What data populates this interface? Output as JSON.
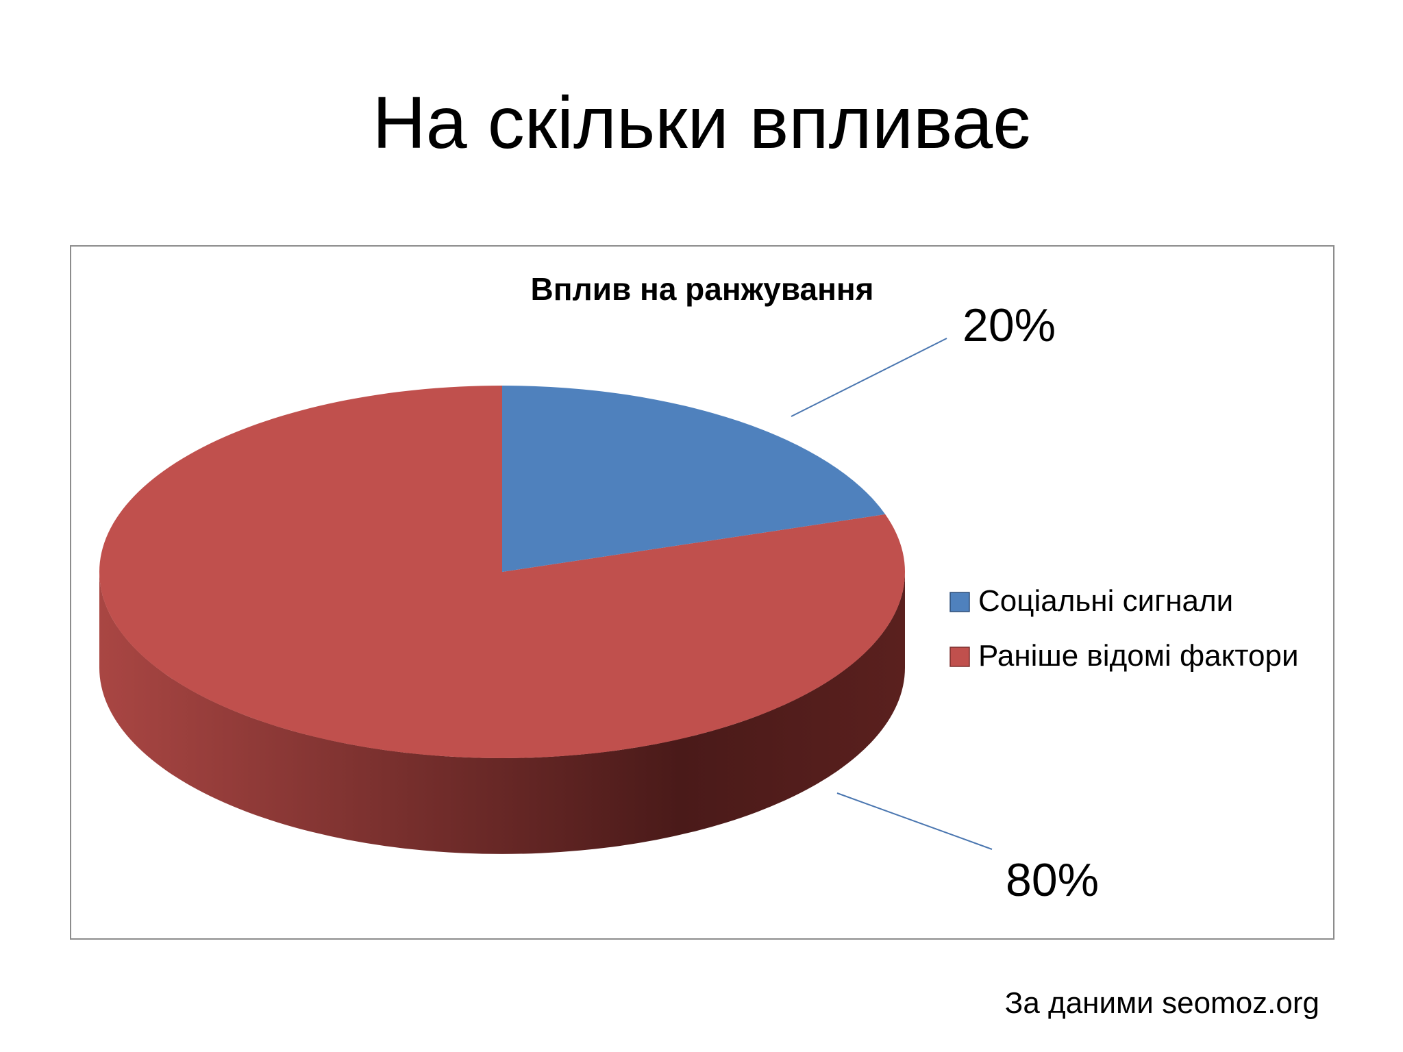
{
  "slide": {
    "title": "На скільки впливає",
    "source_note": "За даними seomoz.org"
  },
  "colors": {
    "series_1": "#4f81bd",
    "series_2": "#c0504d",
    "series_2_side_light": "#a94643",
    "series_2_side_dark": "#4a1a19",
    "leader_line": "#4a76b0",
    "frame_border": "#8c8c8c"
  },
  "chart_data": {
    "type": "pie",
    "title": "Вплив на ранжування",
    "three_d": true,
    "categories": [
      "Соціальні сигнали",
      "Раніше відомі фактори"
    ],
    "values": [
      20,
      80
    ],
    "data_labels": [
      "20%",
      "80%"
    ],
    "legend": {
      "position": "right",
      "entries": [
        "Соціальні сигнали",
        "Раніше відомі фактори"
      ]
    }
  }
}
